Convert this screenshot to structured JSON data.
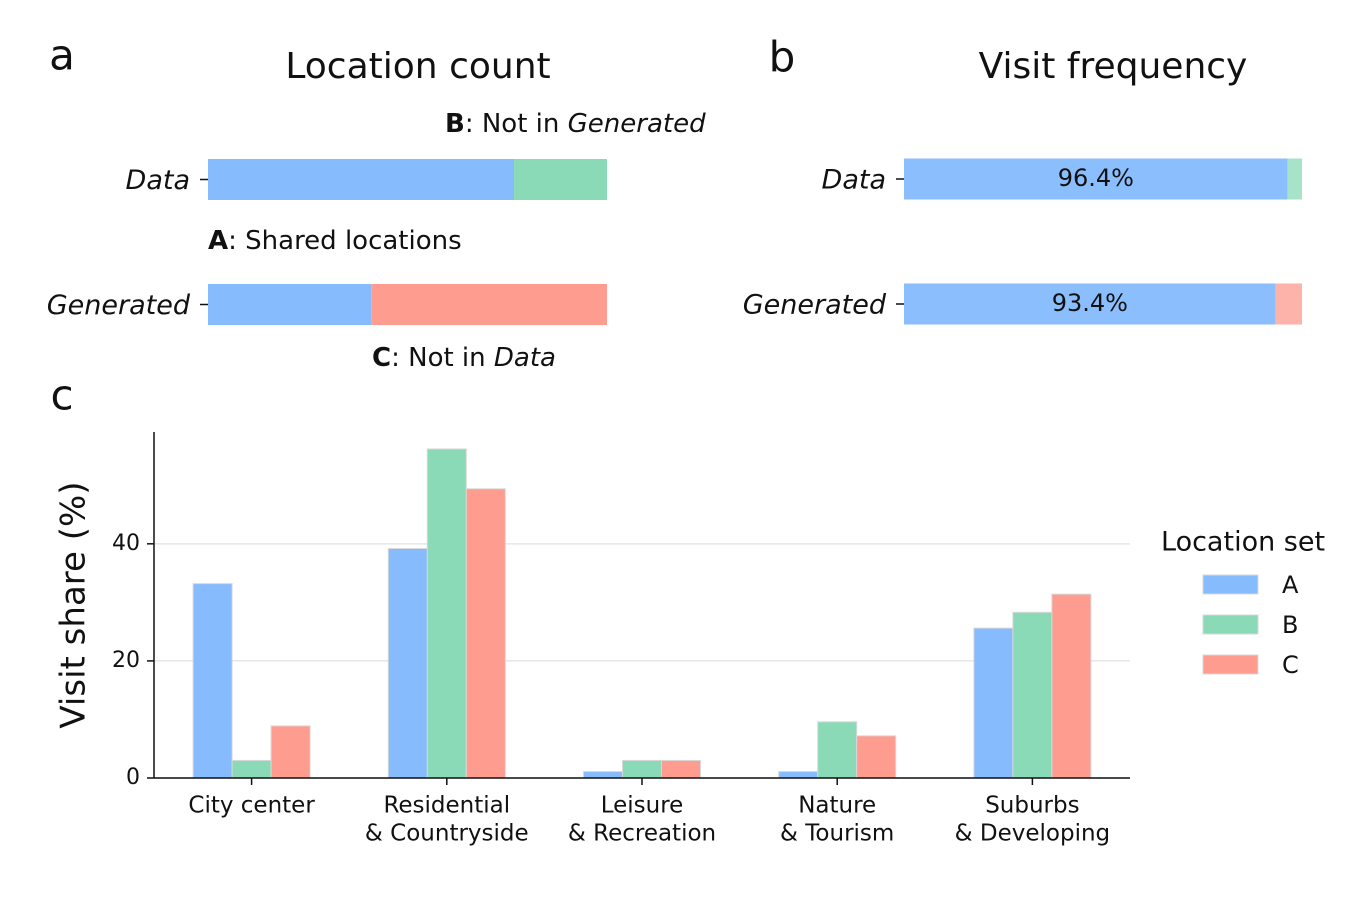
{
  "chart_data": [
    {
      "type": "bar",
      "panel": "a",
      "title": "Location count",
      "orientation": "horizontal",
      "stacked": true,
      "categories": [
        "Data",
        "Generated"
      ],
      "xlim": [
        0,
        100
      ],
      "series": [
        {
          "name": "A",
          "color": "#86bbfd",
          "values": [
            76.7,
            40.9
          ]
        },
        {
          "name": "B",
          "color": "#8adab8",
          "values": [
            23.3,
            null
          ]
        },
        {
          "name": "C",
          "color": "#fe9c90",
          "values": [
            null,
            59.1
          ]
        }
      ],
      "annotations": [
        [
          {
            "text": "B",
            "style": "bold"
          },
          {
            "text": ": Not in "
          },
          {
            "text": "Generated",
            "style": "italic"
          }
        ],
        [
          {
            "text": "A",
            "style": "bold"
          },
          {
            "text": ": Shared locations"
          }
        ],
        [
          {
            "text": "C",
            "style": "bold"
          },
          {
            "text": ": Not in "
          },
          {
            "text": "Data",
            "style": "italic"
          }
        ]
      ]
    },
    {
      "type": "bar",
      "panel": "b",
      "title": "Visit frequency",
      "orientation": "horizontal",
      "stacked": true,
      "categories": [
        "Data",
        "Generated"
      ],
      "xlim": [
        0,
        100
      ],
      "series": [
        {
          "name": "A",
          "color": "#8bbefd",
          "values": [
            96.4,
            93.4
          ],
          "value_labels": [
            "96.4%",
            "93.4%"
          ]
        },
        {
          "name": "B",
          "color": "#a6e3c9",
          "values": [
            3.6,
            null
          ]
        },
        {
          "name": "C",
          "color": "#fdb3a9",
          "values": [
            null,
            6.6
          ]
        }
      ]
    },
    {
      "type": "bar",
      "panel": "c",
      "orientation": "vertical",
      "stacked": false,
      "ylabel": "Visit share (%)",
      "categories": [
        [
          "City center"
        ],
        [
          "Residential",
          "& Countryside"
        ],
        [
          "Leisure",
          "& Recreation"
        ],
        [
          "Nature",
          "& Tourism"
        ],
        [
          "Suburbs",
          "& Developing"
        ]
      ],
      "ylim": [
        0,
        59.1
      ],
      "yticks": [
        0,
        20,
        40
      ],
      "grid": true,
      "legend": "right",
      "legend_title": "Location set",
      "series": [
        {
          "name": "A",
          "color": "#86bbfd",
          "values": [
            33.2,
            39.2,
            1.1,
            1.1,
            25.6
          ]
        },
        {
          "name": "B",
          "color": "#8adab8",
          "values": [
            3.0,
            56.2,
            3.0,
            9.6,
            28.3
          ]
        },
        {
          "name": "C",
          "color": "#fe9c90",
          "values": [
            8.9,
            49.4,
            3.0,
            7.2,
            31.4
          ]
        }
      ]
    }
  ]
}
